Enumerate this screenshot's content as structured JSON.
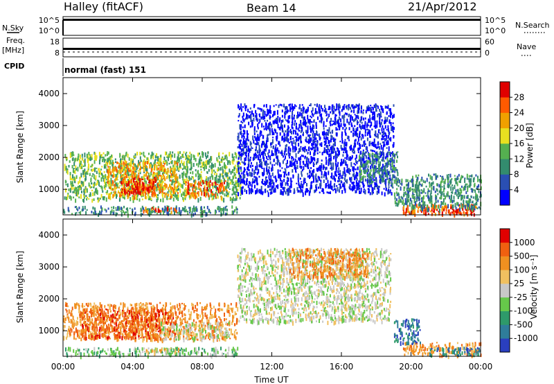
{
  "header": {
    "station": "Halley (fitACF)",
    "beam": "Beam 14",
    "date": "21/Apr/2012"
  },
  "strips": {
    "nsky_label": "N.Sky",
    "nsky_ticks": [
      "10^5",
      "10^0"
    ],
    "nsearch_label": "N.Search",
    "nsearch_ticks": [
      "10^5",
      "10^0"
    ],
    "freq_label": "Freq.",
    "freq_unit": "[MHz]",
    "freq_ticks": [
      "18",
      "8"
    ],
    "nave_label": "Nave",
    "nave_ticks": [
      "60",
      "0"
    ],
    "cpid_label": "CPID",
    "cpid_value": "normal (fast) 151"
  },
  "x_axis": {
    "label": "Time UT",
    "ticks": [
      "00:00",
      "04:00",
      "08:00",
      "12:00",
      "16:00",
      "20:00",
      "00:00"
    ]
  },
  "chart_data": [
    {
      "type": "heatmap",
      "panel": "power",
      "ylabel": "Slant Range [km]",
      "colorbar_label": "Power [dB]",
      "ylim": [
        200,
        4500
      ],
      "yticks": [
        "4000",
        "3000",
        "2000",
        "1000"
      ],
      "xlim_hours": [
        0,
        24
      ],
      "colorbar_ticks": [
        "28",
        "24",
        "20",
        "16",
        "12",
        "8",
        "4"
      ],
      "colors": [
        "#0000ff",
        "#2a4fb3",
        "#338c6e",
        "#55b050",
        "#e8e020",
        "#f0a000",
        "#ff5a00",
        "#e00000"
      ],
      "regions": [
        {
          "t0": 0.0,
          "t1": 10.2,
          "r0": 700,
          "r1": 2200,
          "level": 3
        },
        {
          "t0": 2.5,
          "t1": 6.6,
          "r0": 800,
          "r1": 1900,
          "level": 5
        },
        {
          "t0": 3.3,
          "t1": 5.3,
          "r0": 900,
          "r1": 1400,
          "level": 7
        },
        {
          "t0": 7.0,
          "t1": 9.4,
          "r0": 800,
          "r1": 1300,
          "level": 6
        },
        {
          "t0": 0.0,
          "t1": 10.0,
          "r0": 250,
          "r1": 500,
          "level": 2
        },
        {
          "t0": 4.5,
          "t1": 6.8,
          "r0": 330,
          "r1": 460,
          "level": 6
        },
        {
          "t0": 10.0,
          "t1": 19.0,
          "r0": 900,
          "r1": 3700,
          "level": 0
        },
        {
          "t0": 17.0,
          "t1": 19.2,
          "r0": 1200,
          "r1": 2200,
          "level": 2
        },
        {
          "t0": 19.0,
          "t1": 20.5,
          "r0": 500,
          "r1": 1400,
          "level": 2
        },
        {
          "t0": 19.5,
          "t1": 23.8,
          "r0": 250,
          "r1": 550,
          "level": 6
        },
        {
          "t0": 20.8,
          "t1": 23.5,
          "r0": 250,
          "r1": 420,
          "level": 7
        },
        {
          "t0": 20.0,
          "t1": 24.0,
          "r0": 400,
          "r1": 1500,
          "level": 2
        }
      ]
    },
    {
      "type": "heatmap",
      "panel": "velocity",
      "ylabel": "Slant Range [km]",
      "colorbar_label": "Velocity [m s⁻¹]",
      "ylim": [
        200,
        4500
      ],
      "yticks": [
        "4000",
        "3000",
        "2000",
        "1000"
      ],
      "xlim_hours": [
        0,
        24
      ],
      "colorbar_ticks": [
        "1000",
        "500",
        "100",
        "25",
        "-25",
        "-100",
        "-500",
        "-1000"
      ],
      "colors": [
        "#2a3fbf",
        "#2f7d9a",
        "#2e9a6a",
        "#66c84a",
        "#c8c8c8",
        "#f0c060",
        "#f09020",
        "#f06010",
        "#e00000"
      ],
      "regions": [
        {
          "t0": 0.0,
          "t1": 10.0,
          "r0": 750,
          "r1": 1900,
          "level": 6
        },
        {
          "t0": 1.0,
          "t1": 6.5,
          "r0": 800,
          "r1": 1700,
          "level": 7
        },
        {
          "t0": 5.5,
          "t1": 9.5,
          "r0": 750,
          "r1": 1300,
          "level": 4
        },
        {
          "t0": 0.0,
          "t1": 10.0,
          "r0": 250,
          "r1": 500,
          "level": 3
        },
        {
          "t0": 4.5,
          "t1": 7.0,
          "r0": 350,
          "r1": 480,
          "level": 5
        },
        {
          "t0": 10.0,
          "t1": 18.8,
          "r0": 1300,
          "r1": 3600,
          "level": 4
        },
        {
          "t0": 13.0,
          "t1": 17.5,
          "r0": 2700,
          "r1": 3600,
          "level": 6
        },
        {
          "t0": 19.0,
          "t1": 20.5,
          "r0": 600,
          "r1": 1400,
          "level": 1
        },
        {
          "t0": 19.5,
          "t1": 24.0,
          "r0": 250,
          "r1": 650,
          "level": 6
        },
        {
          "t0": 21.0,
          "t1": 24.0,
          "r0": 250,
          "r1": 500,
          "level": 1
        }
      ]
    }
  ]
}
